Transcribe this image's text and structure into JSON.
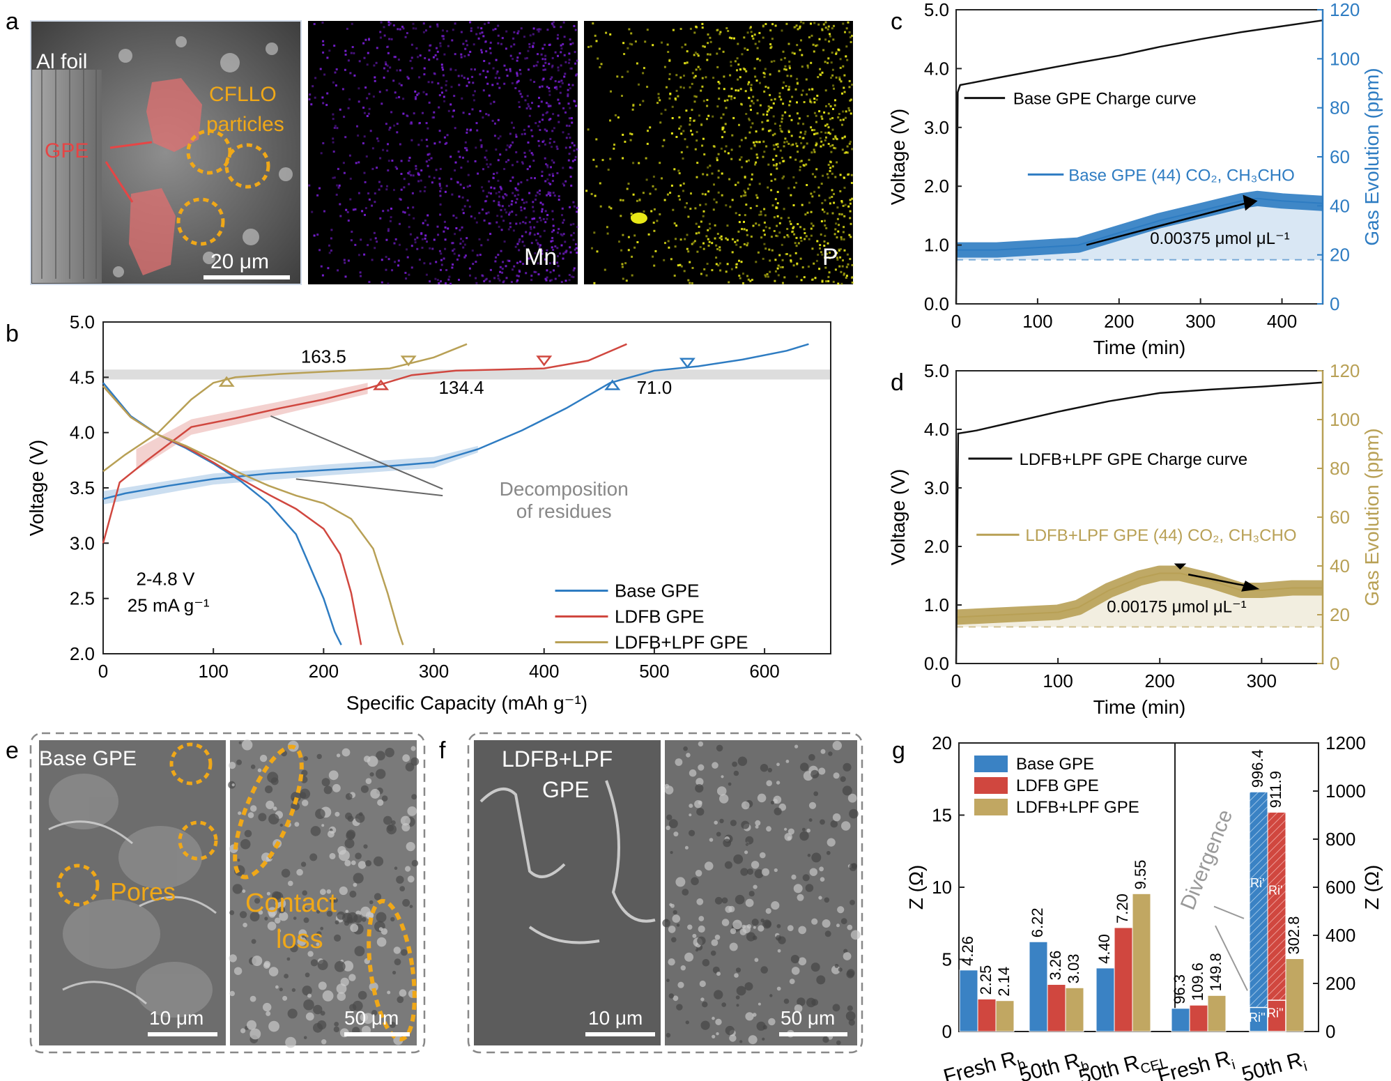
{
  "panel_letters": {
    "a": "a",
    "b": "b",
    "c": "c",
    "d": "d",
    "e": "e",
    "f": "f",
    "g": "g"
  },
  "panel_a": {
    "sem_labels": {
      "al_foil": "Al foil",
      "cfllo_1": "CFLLO",
      "cfllo_2": "particles",
      "gpe": "GPE",
      "scale": "20 μm"
    },
    "map_mn": "Mn",
    "map_p": "P",
    "colors": {
      "mn": "#7a1fd6",
      "p": "#e8e817",
      "gpe": "#e07070",
      "cfllo": "#f0a818"
    }
  },
  "panel_e": {
    "title": "Base GPE",
    "pores": "Pores",
    "contact_1": "Contact",
    "contact_2": "loss",
    "scale_1": "10 μm",
    "scale_2": "50 μm"
  },
  "panel_f": {
    "title_1": "LDFB+LPF",
    "title_2": "GPE",
    "scale_1": "10 μm",
    "scale_2": "50 μm"
  },
  "chart_data": [
    {
      "id": "b",
      "type": "line",
      "xlabel": "Specific Capacity (mAh g⁻¹)",
      "ylabel": "Voltage (V)",
      "xlim": [
        0,
        660
      ],
      "ylim": [
        2.0,
        5.0
      ],
      "xticks": [
        0,
        100,
        200,
        300,
        400,
        500,
        600
      ],
      "yticks": [
        2.0,
        2.5,
        3.0,
        3.5,
        4.0,
        4.5,
        5.0
      ],
      "condition_1": "2-4.8 V",
      "condition_2": "25 mA g⁻¹",
      "annotations": {
        "c1": "163.5",
        "c2": "134.4",
        "c3": "71.0",
        "decomp_1": "Decomposition",
        "decomp_2": "of residues"
      },
      "series": [
        {
          "name": "Base GPE",
          "color": "#2e7cc2",
          "charge_x": [
            0,
            20,
            60,
            100,
            150,
            200,
            250,
            300,
            340,
            380,
            420,
            460,
            500,
            540,
            580,
            620,
            640
          ],
          "charge_y": [
            3.4,
            3.45,
            3.52,
            3.58,
            3.63,
            3.66,
            3.69,
            3.73,
            3.85,
            4.02,
            4.22,
            4.45,
            4.56,
            4.6,
            4.66,
            4.74,
            4.8
          ],
          "discharge_x": [
            0,
            25,
            50,
            75,
            100,
            125,
            150,
            175,
            185,
            200,
            210,
            216
          ],
          "discharge_y": [
            4.45,
            4.15,
            3.98,
            3.86,
            3.72,
            3.56,
            3.36,
            3.08,
            2.85,
            2.5,
            2.2,
            2.08
          ]
        },
        {
          "name": "LDFB GPE",
          "color": "#d0473f",
          "charge_x": [
            0,
            15,
            40,
            80,
            120,
            160,
            200,
            240,
            280,
            320,
            360,
            400,
            440,
            475
          ],
          "charge_y": [
            3.0,
            3.55,
            3.75,
            4.05,
            4.13,
            4.22,
            4.3,
            4.4,
            4.52,
            4.56,
            4.57,
            4.58,
            4.65,
            4.8
          ],
          "discharge_x": [
            0,
            25,
            50,
            75,
            100,
            125,
            150,
            175,
            200,
            215,
            225,
            234
          ],
          "discharge_y": [
            4.42,
            4.14,
            3.98,
            3.87,
            3.73,
            3.58,
            3.44,
            3.31,
            3.13,
            2.9,
            2.55,
            2.08
          ]
        },
        {
          "name": "LDFB+LPF GPE",
          "color": "#b8a055",
          "charge_x": [
            0,
            20,
            50,
            80,
            100,
            120,
            160,
            200,
            260,
            300,
            330
          ],
          "charge_y": [
            3.65,
            3.8,
            4.0,
            4.3,
            4.45,
            4.5,
            4.53,
            4.55,
            4.58,
            4.68,
            4.8
          ],
          "discharge_x": [
            0,
            25,
            50,
            75,
            100,
            125,
            150,
            175,
            200,
            225,
            245,
            258,
            268,
            272
          ],
          "discharge_y": [
            4.42,
            4.14,
            3.98,
            3.88,
            3.76,
            3.63,
            3.52,
            3.43,
            3.36,
            3.22,
            2.95,
            2.55,
            2.2,
            2.08
          ]
        }
      ],
      "legend_position": "bottom-right"
    },
    {
      "id": "c",
      "type": "line",
      "xlabel": "Time (min)",
      "ylabel": "Voltage (V)",
      "y2label": "Gas Evolution (ppm)",
      "xlim": [
        0,
        450
      ],
      "ylim": [
        0,
        5.0
      ],
      "y2lim": [
        0,
        120
      ],
      "xticks": [
        0,
        100,
        200,
        300,
        400
      ],
      "yticks": [
        0.0,
        1.0,
        2.0,
        3.0,
        4.0,
        5.0
      ],
      "y2ticks": [
        0,
        20,
        40,
        60,
        80,
        100,
        120
      ],
      "legend_voltage": "Base GPE Charge curve",
      "legend_gas": "Base GPE (44) CO₂, CH₃CHO",
      "annotation": "0.00375 μmol μL⁻¹",
      "voltage_x": [
        0,
        2,
        5,
        20,
        50,
        100,
        150,
        200,
        250,
        300,
        350,
        400,
        450
      ],
      "voltage_y": [
        0.0,
        3.6,
        3.72,
        3.76,
        3.84,
        3.97,
        4.1,
        4.22,
        4.37,
        4.5,
        4.62,
        4.72,
        4.82
      ],
      "gas_x": [
        0,
        50,
        100,
        150,
        200,
        250,
        300,
        350,
        370,
        400,
        450
      ],
      "gas_y": [
        22,
        22,
        23,
        24,
        29,
        34,
        38,
        42,
        43,
        42,
        41
      ],
      "color_voltage": "#111111",
      "color_gas": "#2e7cc2"
    },
    {
      "id": "d",
      "type": "line",
      "xlabel": "Time (min)",
      "ylabel": "Voltage (V)",
      "y2label": "Gas Evolution (ppm)",
      "xlim": [
        0,
        360
      ],
      "ylim": [
        0,
        5.0
      ],
      "y2lim": [
        0,
        120
      ],
      "xticks": [
        0,
        100,
        200,
        300
      ],
      "yticks": [
        0.0,
        1.0,
        2.0,
        3.0,
        4.0,
        5.0
      ],
      "y2ticks": [
        0,
        20,
        40,
        60,
        80,
        100,
        120
      ],
      "legend_voltage": "LDFB+LPF GPE Charge curve",
      "legend_gas": "LDFB+LPF GPE (44) CO₂, CH₃CHO",
      "annotation": "0.00175 μmol μL⁻¹",
      "voltage_x": [
        0,
        2,
        20,
        50,
        100,
        150,
        200,
        250,
        300,
        360
      ],
      "voltage_y": [
        0.0,
        3.93,
        3.98,
        4.1,
        4.3,
        4.48,
        4.62,
        4.68,
        4.73,
        4.8
      ],
      "gas_x": [
        0,
        50,
        100,
        120,
        150,
        180,
        200,
        220,
        250,
        280,
        300,
        330,
        360
      ],
      "gas_y": [
        19,
        20,
        21,
        23,
        30,
        35,
        37,
        37,
        34,
        30,
        30,
        31,
        31
      ],
      "color_voltage": "#111111",
      "color_gas": "#b8a055"
    },
    {
      "id": "g",
      "type": "bar",
      "ylabel": "Z (Ω)",
      "y2label": "Z (Ω)",
      "ylim": [
        0,
        20
      ],
      "y2lim": [
        0,
        1200
      ],
      "yticks": [
        0,
        5,
        10,
        15,
        20
      ],
      "y2ticks": [
        0,
        200,
        400,
        600,
        800,
        1000,
        1200
      ],
      "categories": [
        "Fresh R_b",
        "50th R_b",
        "50th R_CEI",
        "Fresh R_i",
        "50th R_i"
      ],
      "category_labels": [
        {
          "m": "Fresh R",
          "s": "b"
        },
        {
          "m": "50th R",
          "s": "b"
        },
        {
          "m": "50th R",
          "s": "CEI"
        },
        {
          "m": "Fresh R",
          "s": "i"
        },
        {
          "m": "50th R",
          "s": "i"
        }
      ],
      "series": [
        {
          "name": "Base GPE",
          "color": "#3a82c4",
          "values": [
            4.26,
            6.22,
            4.4,
            96.3,
            996.4
          ],
          "labels": [
            "4.26",
            "6.22",
            "4.40",
            "96.3",
            "996.4"
          ]
        },
        {
          "name": "LDFB GPE",
          "color": "#d0473f",
          "values": [
            2.25,
            3.26,
            7.2,
            109.6,
            911.9
          ],
          "labels": [
            "2.25",
            "3.26",
            "7.20",
            "109.6",
            "911.9"
          ]
        },
        {
          "name": "LDFB+LPF GPE",
          "color": "#c1a762",
          "values": [
            2.14,
            3.03,
            9.55,
            149.8,
            302.8
          ],
          "labels": [
            "2.14",
            "3.03",
            "9.55",
            "149.8",
            "302.8"
          ]
        }
      ],
      "split_segments": {
        "base_ri_double_prime": 100,
        "ldfb_ri_double_prime": 130
      },
      "segment_labels": {
        "ri_prime": "Ri'",
        "ri_double": "Ri''"
      },
      "divergence": "Divergence",
      "legend_position": "top-left"
    }
  ]
}
